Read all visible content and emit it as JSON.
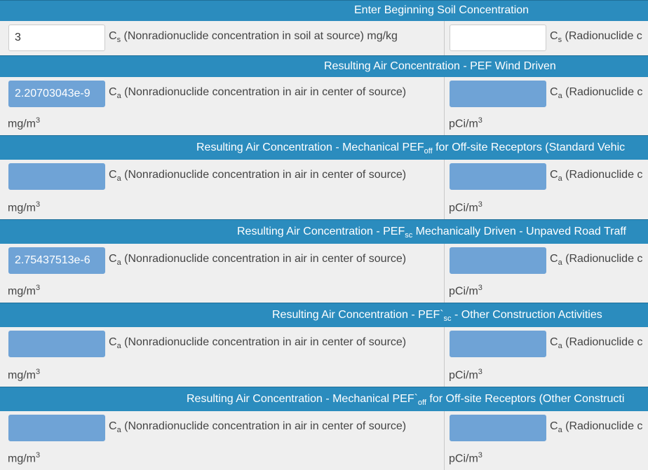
{
  "sections": [
    {
      "header": [
        "Enter Beginning Soil Concentration"
      ],
      "left": {
        "input": "3",
        "symbol": "C",
        "sub": "s",
        "label": "(Nonradionuclide concentration in soil at source) mg/kg"
      },
      "right": {
        "symbol": "C",
        "sub": "s",
        "label": "(Radionuclide c"
      }
    },
    {
      "header": [
        "Resulting Air Concentration - PEF Wind Driven"
      ],
      "left": {
        "input": "2.20703043e-9",
        "symbol": "C",
        "sub": "a",
        "label": "(Nonradionuclide concentration in air in center of source)",
        "unit": "mg/m",
        "unit_sup": "3"
      },
      "right": {
        "symbol": "C",
        "sub": "a",
        "label": "(Radionuclide c",
        "unit": "pCi/m",
        "unit_sup": "3"
      }
    },
    {
      "header": [
        "Resulting Air Concentration - Mechanical PEF",
        "off",
        " for Off-site Receptors (Standard Vehic"
      ],
      "left": {
        "symbol": "C",
        "sub": "a",
        "label": "(Nonradionuclide concentration in air in center of source)",
        "unit": "mg/m",
        "unit_sup": "3"
      },
      "right": {
        "symbol": "C",
        "sub": "a",
        "label": "(Radionuclide c",
        "unit": "pCi/m",
        "unit_sup": "3"
      }
    },
    {
      "header": [
        "Resulting Air Concentration - PEF",
        "sc",
        " Mechanically Driven - Unpaved Road Traff"
      ],
      "left": {
        "input": "2.75437513e-6",
        "symbol": "C",
        "sub": "a",
        "label": "(Nonradionuclide concentration in air in center of source)",
        "unit": "mg/m",
        "unit_sup": "3"
      },
      "right": {
        "symbol": "C",
        "sub": "a",
        "label": "(Radionuclide c",
        "unit": "pCi/m",
        "unit_sup": "3"
      }
    },
    {
      "header": [
        "Resulting Air Concentration - PEF`",
        "sc",
        " - Other Construction Activities"
      ],
      "left": {
        "symbol": "C",
        "sub": "a",
        "label": "(Nonradionuclide concentration in air in center of source)",
        "unit": "mg/m",
        "unit_sup": "3"
      },
      "right": {
        "symbol": "C",
        "sub": "a",
        "label": "(Radionuclide c",
        "unit": "pCi/m",
        "unit_sup": "3"
      }
    },
    {
      "header": [
        "Resulting Air Concentration - Mechanical PEF`",
        "off",
        " for Off-site Receptors (Other Constructi"
      ],
      "left": {
        "symbol": "C",
        "sub": "a",
        "label": "(Nonradionuclide concentration in air in center of source)",
        "unit": "mg/m",
        "unit_sup": "3"
      },
      "right": {
        "symbol": "C",
        "sub": "a",
        "label": "(Radionuclide c",
        "unit": "pCi/m",
        "unit_sup": "3"
      }
    }
  ]
}
